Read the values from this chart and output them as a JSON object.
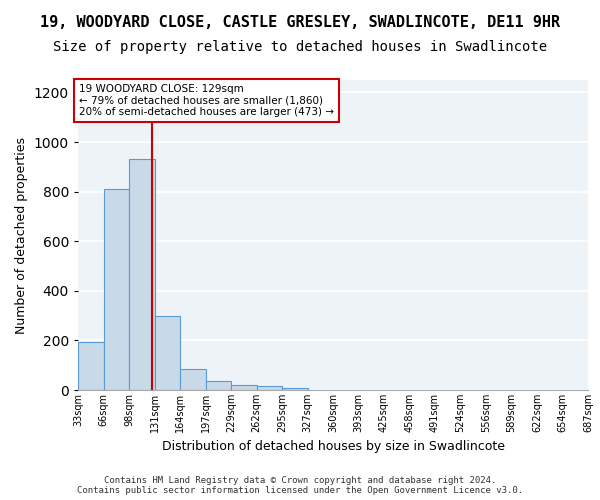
{
  "title_line1": "19, WOODYARD CLOSE, CASTLE GRESLEY, SWADLINCOTE, DE11 9HR",
  "title_line2": "Size of property relative to detached houses in Swadlincote",
  "xlabel": "Distribution of detached houses by size in Swadlincote",
  "ylabel": "Number of detached properties",
  "bar_values": [
    195,
    810,
    930,
    300,
    85,
    35,
    20,
    15,
    10,
    0,
    0,
    0,
    0,
    0,
    0,
    0,
    0,
    0,
    0,
    0
  ],
  "bin_edges": [
    33,
    66,
    99,
    132,
    165,
    198,
    231,
    264,
    297,
    330,
    363,
    396,
    429,
    462,
    495,
    528,
    561,
    594,
    627,
    660,
    693
  ],
  "tick_labels": [
    "33sqm",
    "66sqm",
    "98sqm",
    "131sqm",
    "164sqm",
    "197sqm",
    "229sqm",
    "262sqm",
    "295sqm",
    "327sqm",
    "360sqm",
    "393sqm",
    "425sqm",
    "458sqm",
    "491sqm",
    "524sqm",
    "556sqm",
    "589sqm",
    "622sqm",
    "654sqm",
    "687sqm"
  ],
  "bar_color": "#c8d9e8",
  "bar_edge_color": "#5b9bd5",
  "vline_x": 129,
  "vline_color": "#cc0000",
  "annotation_text": "19 WOODYARD CLOSE: 129sqm\n← 79% of detached houses are smaller (1,860)\n20% of semi-detached houses are larger (473) →",
  "annotation_box_color": "white",
  "annotation_box_edge": "#cc0000",
  "ylim": [
    0,
    1250
  ],
  "yticks": [
    0,
    200,
    400,
    600,
    800,
    1000,
    1200
  ],
  "bg_color": "#eef3f8",
  "grid_color": "white",
  "footer_text": "Contains HM Land Registry data © Crown copyright and database right 2024.\nContains public sector information licensed under the Open Government Licence v3.0.",
  "title_fontsize": 11,
  "subtitle_fontsize": 10
}
